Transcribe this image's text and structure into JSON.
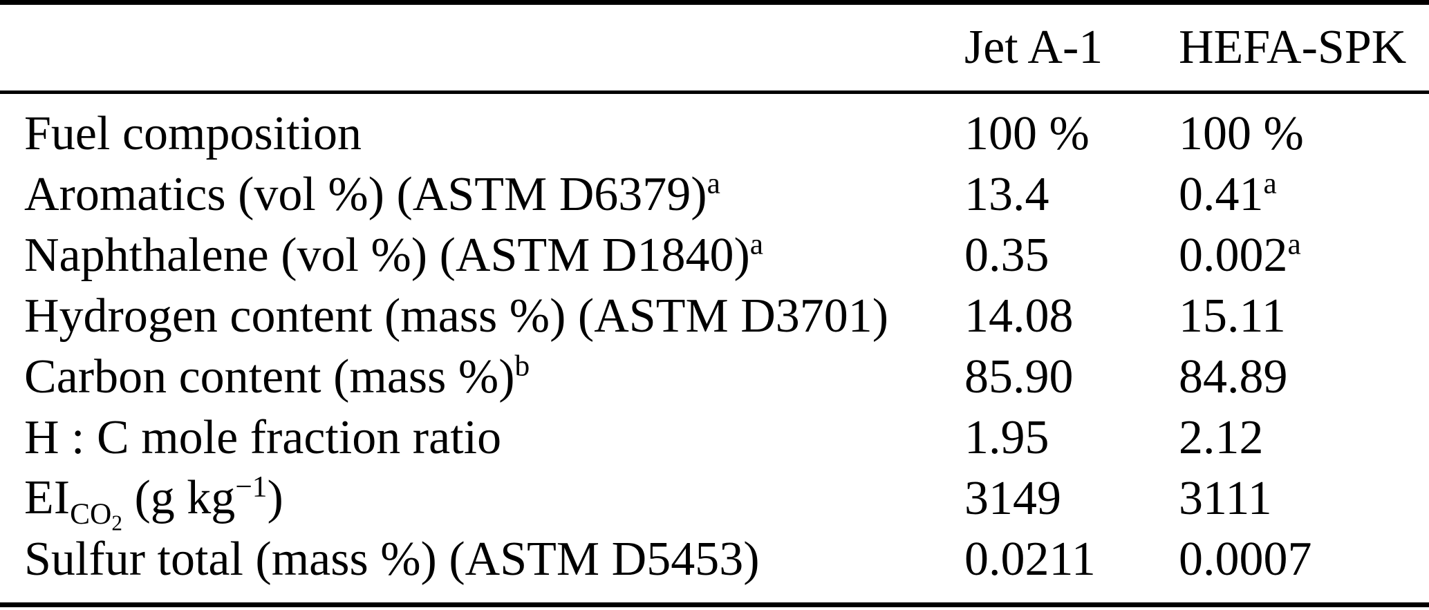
{
  "table": {
    "header": {
      "col_jet": "Jet A-1",
      "col_hefa": "HEFA-SPK"
    },
    "rows": [
      {
        "label": "Fuel composition",
        "jet": "100 %",
        "hefa": "100 %"
      },
      {
        "label": "Aromatics (vol %) (ASTM D6379)",
        "label_sup": "a",
        "jet": "13.4",
        "hefa": "0.41",
        "hefa_sup": "a"
      },
      {
        "label": "Naphthalene (vol %) (ASTM D1840)",
        "label_sup": "a",
        "jet": "0.35",
        "hefa": "0.002",
        "hefa_sup": "a"
      },
      {
        "label": "Hydrogen content (mass %) (ASTM D3701)",
        "jet": "14.08",
        "hefa": "15.11"
      },
      {
        "label": "Carbon content (mass %)",
        "label_sup": "b",
        "jet": "85.90",
        "hefa": "84.89"
      },
      {
        "label": "H : C mole fraction ratio",
        "jet": "1.95",
        "hefa": "2.12"
      },
      {
        "label_parts": {
          "prefix": "EI",
          "sub_main": "CO",
          "sub_sub": "2",
          "mid": " (g kg",
          "sup": "−1",
          "suffix": ")"
        },
        "jet": "3149",
        "hefa": "3111"
      },
      {
        "label": "Sulfur total (mass %) (ASTM D5453)",
        "jet": "0.0211",
        "hefa": "0.0007"
      }
    ]
  },
  "colors": {
    "text": "#000000",
    "background": "#ffffff",
    "rule": "#000000"
  }
}
